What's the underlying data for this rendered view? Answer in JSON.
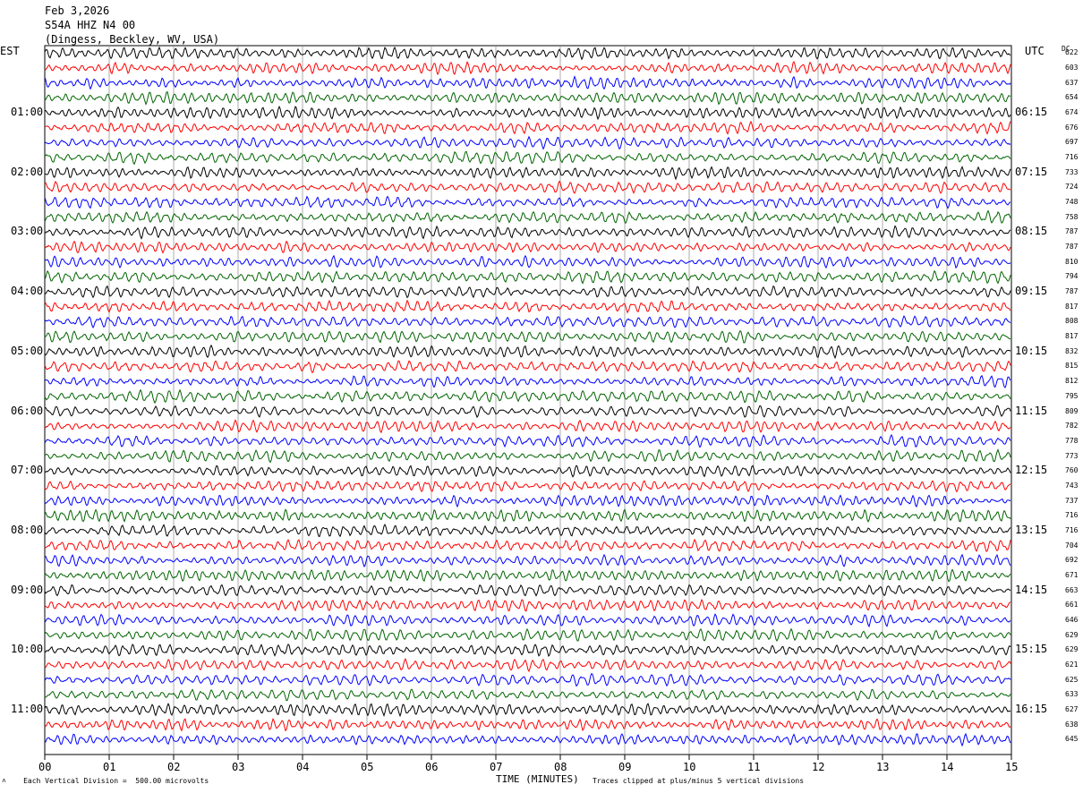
{
  "header": {
    "date": "Feb 3,2026",
    "station": "S54A HHZ N4 00",
    "location": "(Dingess, Beckley, WV, USA)"
  },
  "chart_data": {
    "type": "line",
    "title": "Feb 3,2026",
    "left_axis_label": "EST",
    "right_axis_label": "UTC",
    "dc_header": "DC",
    "xlabel": "TIME (MINUTES)",
    "x_ticks": [
      "00",
      "01",
      "02",
      "03",
      "04",
      "05",
      "06",
      "07",
      "08",
      "09",
      "10",
      "11",
      "12",
      "13",
      "14",
      "15"
    ],
    "xlim": [
      0,
      15
    ],
    "est_labels": [
      "01:00",
      "02:00",
      "03:00",
      "04:00",
      "05:00",
      "06:00",
      "07:00",
      "08:00",
      "09:00",
      "10:00",
      "11:00"
    ],
    "utc_labels": [
      "06:15",
      "07:15",
      "08:15",
      "09:15",
      "10:15",
      "11:15",
      "12:15",
      "13:15",
      "14:15",
      "15:15",
      "16:15"
    ],
    "trace_colors": [
      "#000000",
      "#ff0000",
      "#0000ff",
      "#006400"
    ],
    "dc_offsets": [
      "622",
      "603",
      "637",
      "654",
      "674",
      "676",
      "697",
      "716",
      "733",
      "724",
      "748",
      "758",
      "787",
      "787",
      "810",
      "794",
      "787",
      "817",
      "808",
      "817",
      "832",
      "815",
      "812",
      "795",
      "809",
      "782",
      "778",
      "773",
      "760",
      "743",
      "737",
      "716",
      "716",
      "704",
      "692",
      "671",
      "663",
      "661",
      "646",
      "629",
      "629",
      "621",
      "625",
      "633",
      "627",
      "638",
      "645"
    ],
    "scale_note": "Each Vertical Division =  500.00 microvolts",
    "clip_note": "Traces clipped at plus/minus 5 vertical divisions"
  },
  "footer": {
    "corner_mark": "˄"
  }
}
